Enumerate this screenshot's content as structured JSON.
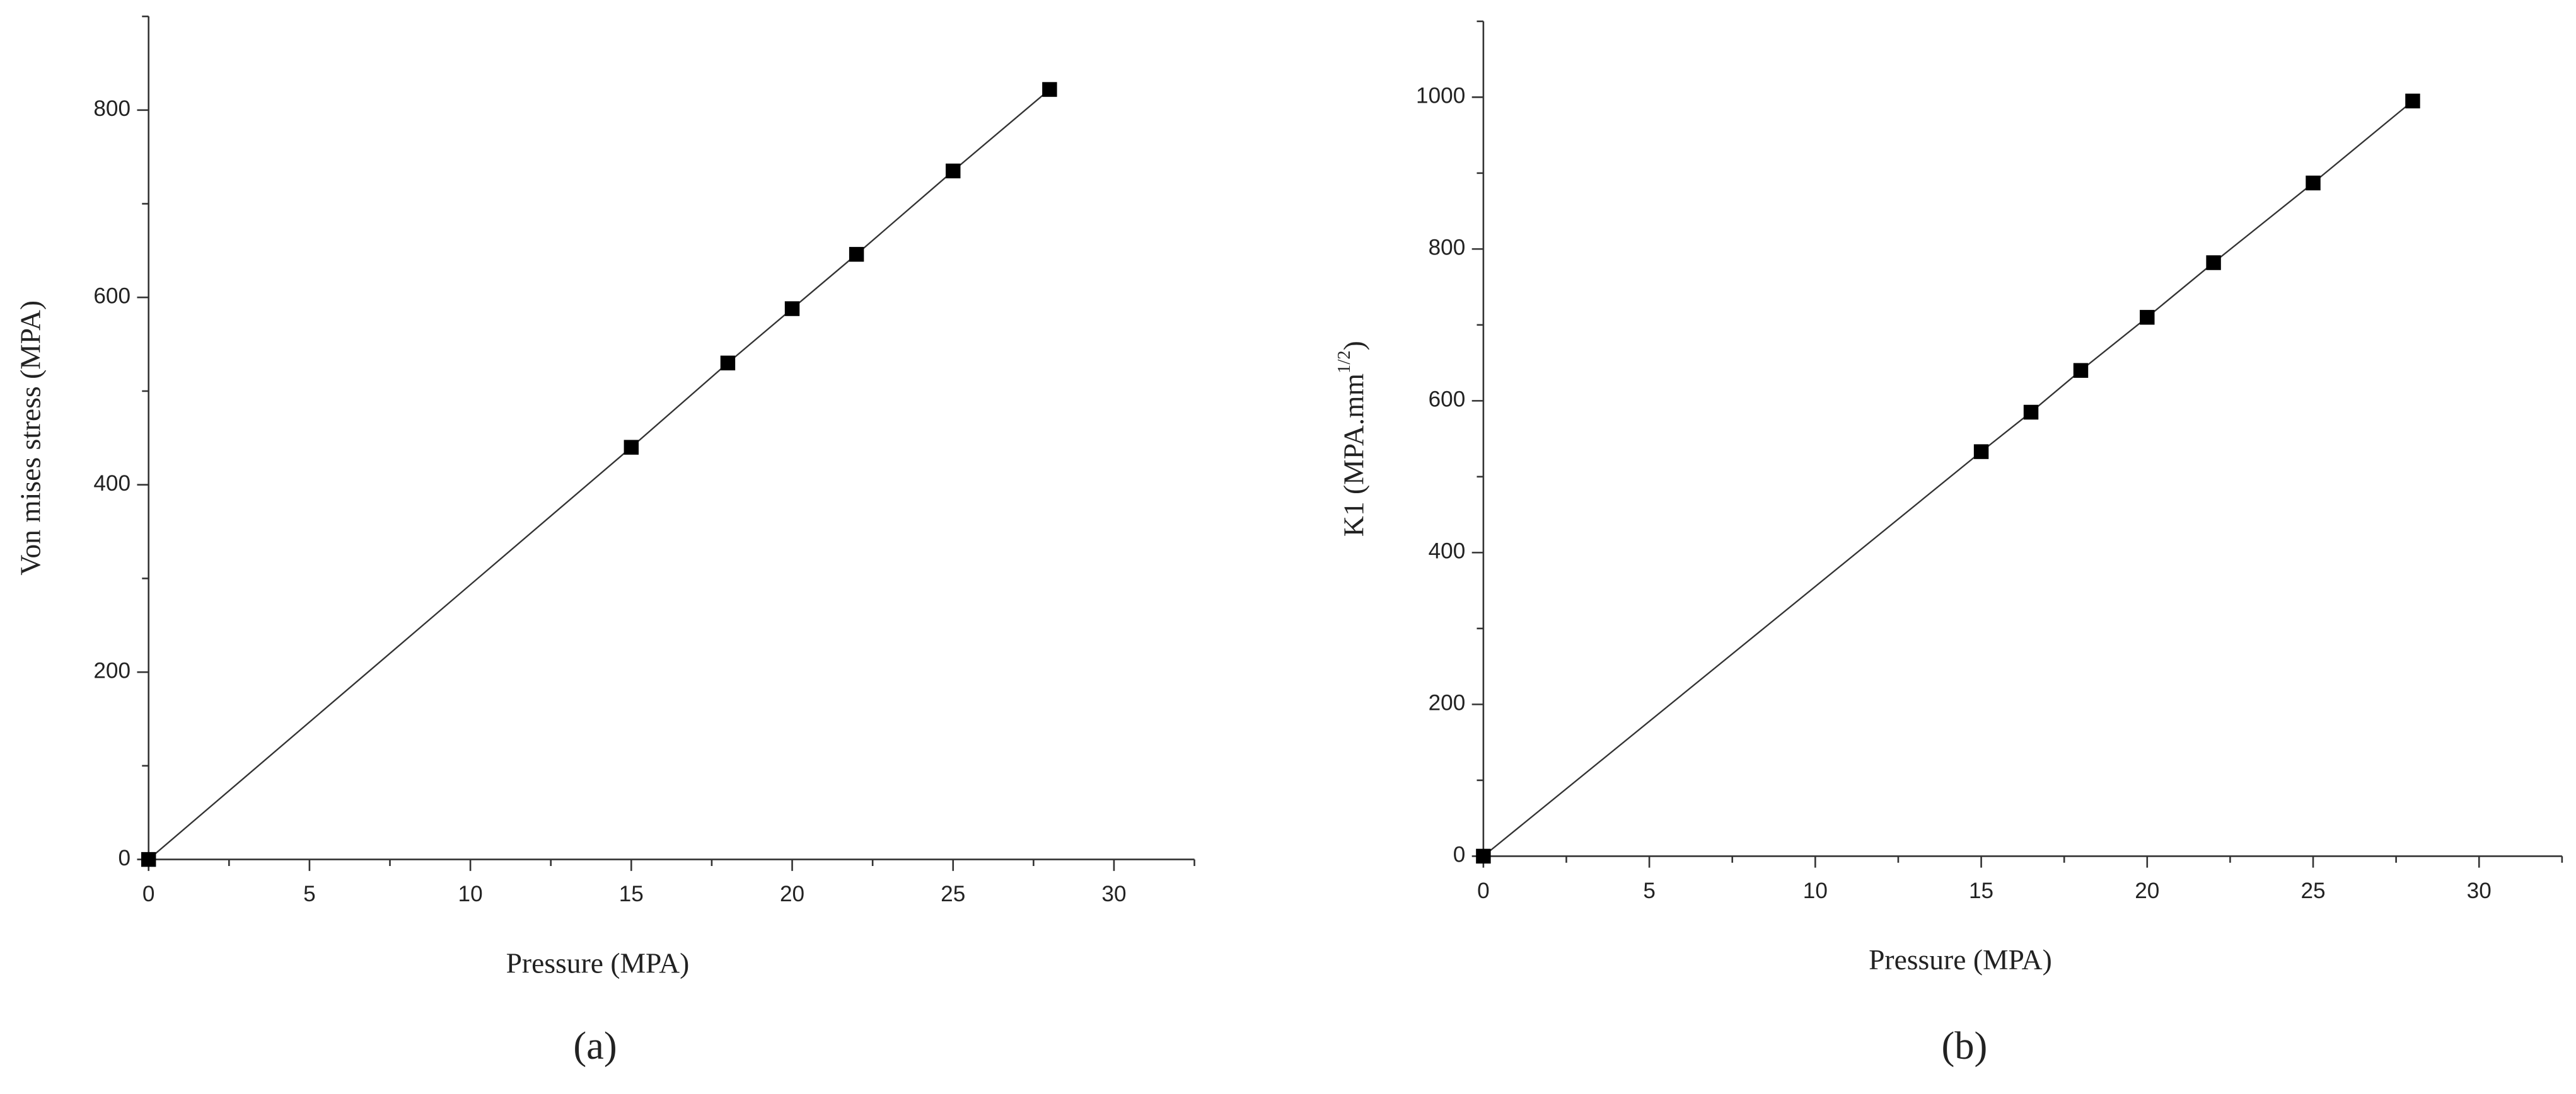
{
  "chart_data": [
    {
      "type": "scatter",
      "panel_label": "(a)",
      "xlabel": "Pressure (MPA)",
      "ylabel": [
        "Von mises stress (MPA)"
      ],
      "x": [
        0,
        15,
        18,
        20,
        22,
        25,
        28
      ],
      "values": [
        0,
        440,
        530,
        588,
        646,
        735,
        822
      ],
      "color": "#000000",
      "xlim": [
        0,
        32.5
      ],
      "ylim": [
        0,
        900
      ],
      "xticks": [
        0,
        5,
        10,
        15,
        20,
        25,
        30
      ],
      "yticks": [
        0,
        200,
        400,
        600,
        800
      ],
      "xminor": [
        2.5,
        7.5,
        12.5,
        17.5,
        22.5,
        27.5,
        32.5
      ],
      "yminor": [
        100,
        300,
        500,
        700,
        900
      ]
    },
    {
      "type": "scatter",
      "panel_label": "(b)",
      "xlabel": "Pressure (MPA)",
      "ylabel": [
        "K1 (MPA.mm",
        "1/2",
        ")"
      ],
      "x": [
        0,
        15,
        16.5,
        18,
        20,
        22,
        25,
        28
      ],
      "values": [
        0,
        533,
        585,
        640,
        710,
        782,
        887,
        995
      ],
      "color": "#000000",
      "xlim": [
        0,
        32.5
      ],
      "ylim": [
        0,
        1100
      ],
      "xticks": [
        0,
        5,
        10,
        15,
        20,
        25,
        30
      ],
      "yticks": [
        0,
        200,
        400,
        600,
        800,
        1000
      ],
      "xminor": [
        2.5,
        7.5,
        12.5,
        17.5,
        22.5,
        27.5,
        32.5
      ],
      "yminor": [
        100,
        300,
        500,
        700,
        900,
        1100
      ]
    }
  ]
}
